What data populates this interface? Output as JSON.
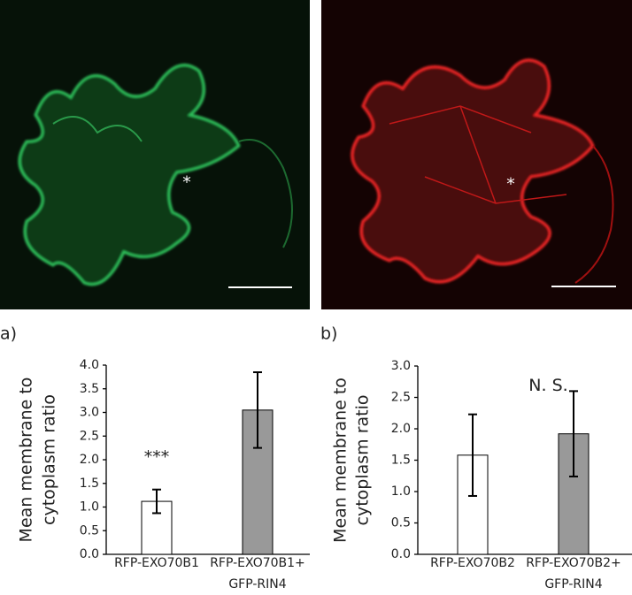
{
  "images": [
    {
      "marker": "*"
    },
    {
      "marker": "*"
    }
  ],
  "chart_data": [
    {
      "type": "bar",
      "label": "a)",
      "y_label": [
        "Mean membrane to",
        "cytoplasm ratio"
      ],
      "categories": [
        "RFP-EXO70B1",
        "RFP-EXO70B1+ GFP-RIN4"
      ],
      "values": [
        1.12,
        3.05
      ],
      "errors": [
        0.25,
        0.8
      ],
      "colors": [
        "#ffffff",
        "#999999"
      ],
      "annotations": [
        {
          "text": "***",
          "category": 0,
          "y": 2.05
        }
      ],
      "ylim": [
        0,
        4
      ],
      "yticks": [
        {
          "value": 0,
          "label": "0.0"
        },
        0.5,
        {
          "value": 1,
          "label": "1.0"
        },
        1.5,
        {
          "value": 2,
          "label": "2.0"
        },
        2.5,
        {
          "value": 3,
          "label": "3.0"
        },
        3.5,
        {
          "value": 4,
          "label": "4.0"
        }
      ]
    },
    {
      "type": "bar",
      "label": "b)",
      "y_label": [
        "Mean membrane to",
        "cytoplasm ratio"
      ],
      "categories": [
        "RFP-EXO70B2",
        "RFP-EXO70B2+ GFP-RIN4"
      ],
      "values": [
        1.58,
        1.92
      ],
      "errors": [
        0.65,
        0.68
      ],
      "colors": [
        "#ffffff",
        "#999999"
      ],
      "annotations": [
        {
          "text": "N. S.",
          "category": 0.75,
          "y": 2.68
        }
      ],
      "ylim": [
        0,
        3
      ],
      "yticks": [
        {
          "value": 0,
          "label": "0.0"
        },
        0.5,
        {
          "value": 1,
          "label": "1.0"
        },
        1.5,
        {
          "value": 2,
          "label": "2.0"
        },
        2.5,
        {
          "value": 3,
          "label": "3.0"
        }
      ]
    }
  ]
}
